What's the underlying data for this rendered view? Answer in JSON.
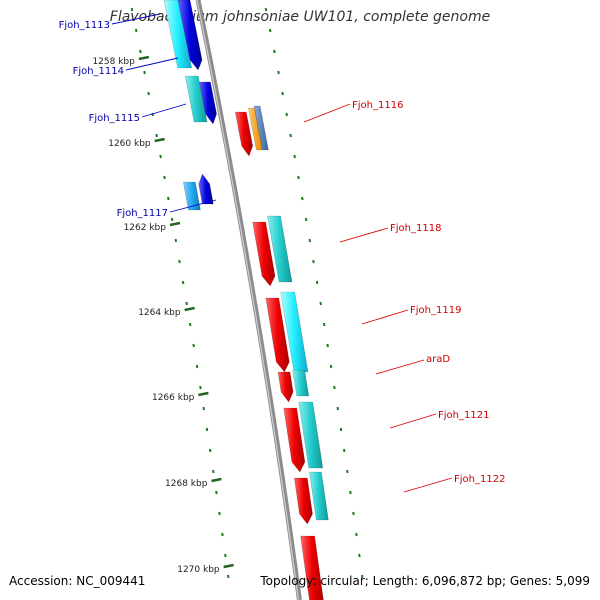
{
  "title": "Flavobacterium johnsoniae UW101, complete genome",
  "footer": {
    "accession": "Accession: NC_009441",
    "topology": "Topology: circular; Length: 6,096,872 bp; Genes: 5,099"
  },
  "kbp_labels": [
    "1258 kbp",
    "1260 kbp",
    "1262 kbp",
    "1264 kbp",
    "1266 kbp",
    "1268 kbp",
    "1270 kbp"
  ],
  "genes_left": [
    {
      "label": "Fjoh_1113"
    },
    {
      "label": "Fjoh_1114"
    },
    {
      "label": "Fjoh_1115"
    },
    {
      "label": "Fjoh_1117"
    }
  ],
  "genes_right": [
    {
      "label": "Fjoh_1116"
    },
    {
      "label": "Fjoh_1118"
    },
    {
      "label": "Fjoh_1119"
    },
    {
      "label": "araD"
    },
    {
      "label": "Fjoh_1121"
    },
    {
      "label": "Fjoh_1122"
    }
  ],
  "colors": {
    "backbone": "#888888",
    "forward_gene": "#0000dd",
    "reverse_gene": "#ee0000",
    "cog_cyan": "#22cccc",
    "cog_light_blue": "#22aaee",
    "cog_orange": "#ff9900",
    "cog_steel": "#4488bb",
    "tick": "#227722",
    "left_label": "#0000aa",
    "right_label": "#cc0000"
  }
}
